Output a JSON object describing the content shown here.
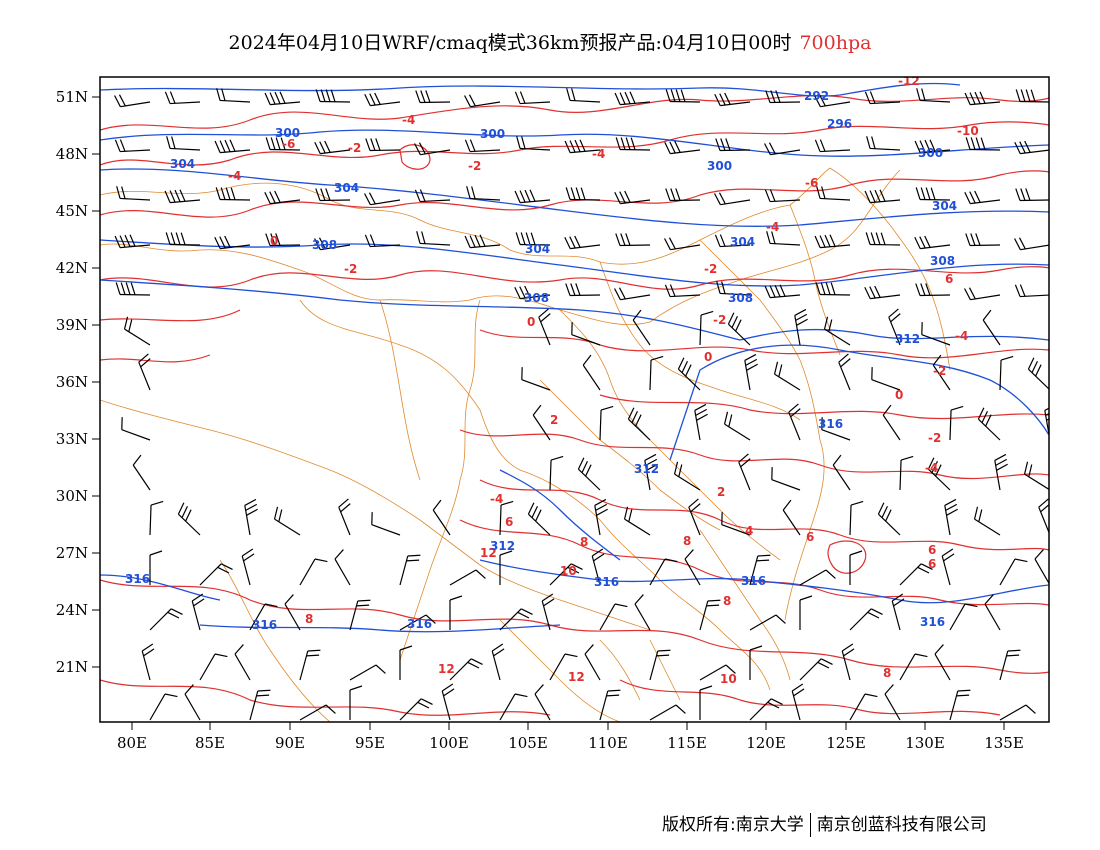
{
  "title": {
    "main": "2024年04月10日WRF/cmaq模式36km预报产品:04月10日00时",
    "level": "700hpa"
  },
  "axes": {
    "lon_ticks": [
      "80E",
      "85E",
      "90E",
      "95E",
      "100E",
      "105E",
      "110E",
      "115E",
      "120E",
      "125E",
      "130E",
      "135E"
    ],
    "lat_ticks": [
      "51N",
      "48N",
      "45N",
      "42N",
      "39N",
      "36N",
      "33N",
      "30N",
      "27N",
      "24N",
      "21N"
    ]
  },
  "colors": {
    "temperature": "#e03030",
    "geopotential": "#2050d8",
    "boundary": "#e08a2e",
    "barb": "#000000"
  },
  "temperature_labels": [
    "-12",
    "-10",
    "-8",
    "-6",
    "-4",
    "-2",
    "0",
    "2",
    "4",
    "6",
    "8",
    "10",
    "12"
  ],
  "geopotential_labels": [
    "292",
    "296",
    "300",
    "304",
    "308",
    "312",
    "316"
  ],
  "footer": {
    "copyright": "版权所有:南京大学",
    "company": "南京创蓝科技有限公司"
  }
}
